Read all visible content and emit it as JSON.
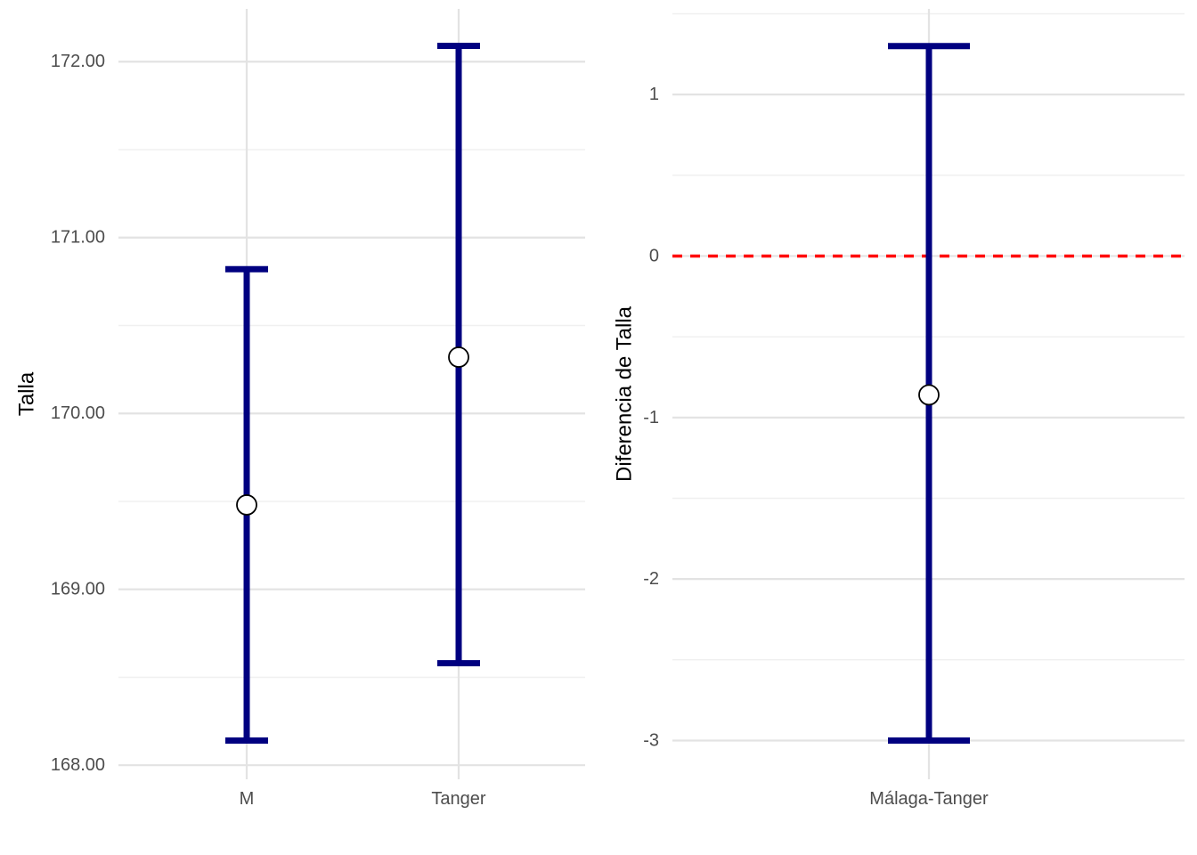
{
  "figure_title": "",
  "colors": {
    "errorbar": "#000080",
    "point_fill": "#FFFFFF",
    "point_stroke": "#000000",
    "grid_major": "#E3E3E3",
    "grid_minor": "#F0F0F0",
    "tick_text": "#4D4D4D",
    "axis_title_text": "#000000",
    "reference_line": "#FF0000",
    "background": "#FFFFFF"
  },
  "chart_data": [
    {
      "type": "errorbar",
      "panel": "left",
      "title": "",
      "xlabel": "",
      "ylabel": "Talla",
      "categories": [
        "M",
        "Tanger"
      ],
      "series": [
        {
          "category": "M",
          "mean": 169.48,
          "lower": 168.14,
          "upper": 170.82
        },
        {
          "category": "Tanger",
          "mean": 170.32,
          "lower": 168.58,
          "upper": 172.09
        }
      ],
      "yticks": [
        172,
        171,
        170,
        169,
        168
      ],
      "ytick_labels": [
        "172.00",
        "171.00",
        "170.00",
        "169.00",
        "168.00"
      ],
      "yminor": [
        171.5,
        170.5,
        169.5,
        168.5
      ],
      "ylim": [
        167.92,
        172.3
      ],
      "grid": "on",
      "legend": "none"
    },
    {
      "type": "errorbar",
      "panel": "right",
      "title": "",
      "xlabel": "",
      "ylabel": "Diferencia de Talla",
      "categories": [
        "Málaga-Tanger"
      ],
      "series": [
        {
          "category": "Málaga-Tanger",
          "mean": -0.86,
          "lower": -3.0,
          "upper": 1.3
        }
      ],
      "yticks": [
        1,
        0,
        -1,
        -2,
        -3
      ],
      "ytick_labels": [
        "1",
        "0",
        "-1",
        "-2",
        "-3"
      ],
      "yminor": [
        1.5,
        0.5,
        -0.5,
        -1.5,
        -2.5
      ],
      "ylim": [
        -3.24,
        1.53
      ],
      "reference_line": {
        "y": 0,
        "color": "#FF0000",
        "style": "dashed"
      },
      "grid": "on",
      "legend": "none"
    }
  ]
}
